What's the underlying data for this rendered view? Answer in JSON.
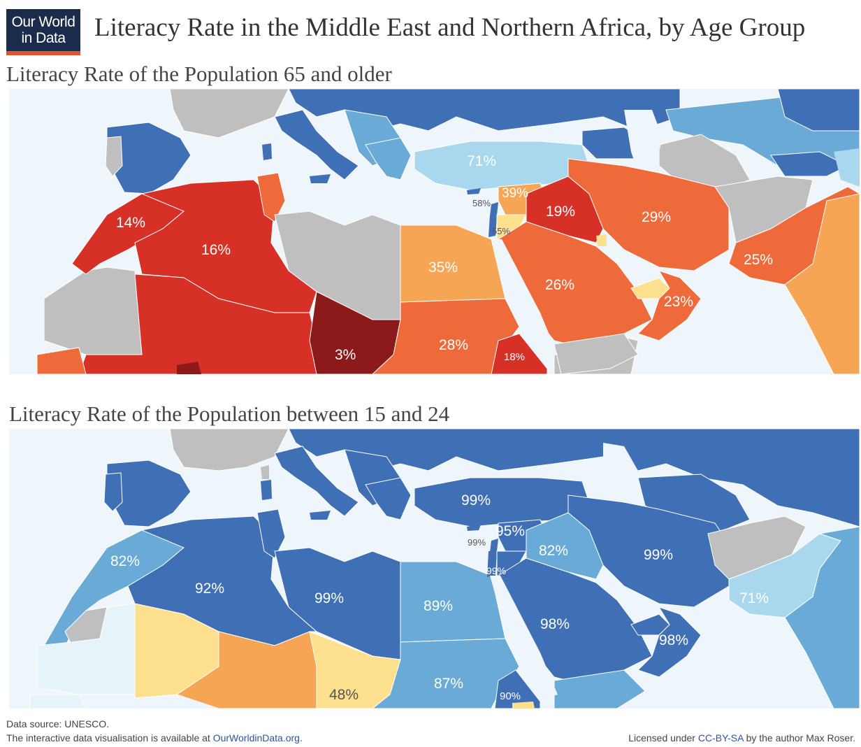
{
  "logo": {
    "line1": "Our World",
    "line2": "in Data"
  },
  "title": "Literacy Rate in the Middle East and Northern Africa, by Age Group",
  "colors": {
    "sea": "#eef6fb",
    "no_data": "#bfbfbf",
    "dark_red": "#8c1a1a",
    "red": "#d73027",
    "orange_red": "#ef6a3a",
    "orange": "#f6a555",
    "yellow": "#fde08e",
    "light_blue": "#a9d8ee",
    "mid_blue": "#6aaad6",
    "blue": "#3f6fb5",
    "pale": "#e6f3f9"
  },
  "top_map": {
    "subtitle": "Literacy Rate of the Population 65 and older",
    "labels": {
      "turkey": "71%",
      "syria": "39%",
      "lebanon": "58%",
      "jordan": "55%",
      "iraq": "19%",
      "iran": "29%",
      "morocco": "14%",
      "algeria": "16%",
      "egypt": "35%",
      "saudi": "26%",
      "oman": "23%",
      "pakistan": "25%",
      "chad": "3%",
      "sudan": "28%",
      "eritrea": "18%"
    }
  },
  "bottom_map": {
    "subtitle": "Literacy Rate of the Population between 15 and 24",
    "labels": {
      "turkey": "99%",
      "syria": "95%",
      "lebanon": "99%",
      "jordan": "99%",
      "iraq": "82%",
      "iran": "99%",
      "morocco": "82%",
      "algeria": "92%",
      "libya": "99%",
      "egypt": "89%",
      "saudi": "98%",
      "oman": "98%",
      "pakistan": "71%",
      "sudan": "87%",
      "chad": "48%",
      "eritrea": "90%"
    }
  },
  "footer": {
    "source": "Data source:  UNESCO.",
    "interactive_prefix": "The interactive data visualisation is available at ",
    "interactive_link": "OurWorldinData.org",
    "interactive_suffix": ".",
    "license_prefix": "Licensed under ",
    "license_link": "CC-BY-SA",
    "license_suffix": " by the author Max Roser."
  }
}
